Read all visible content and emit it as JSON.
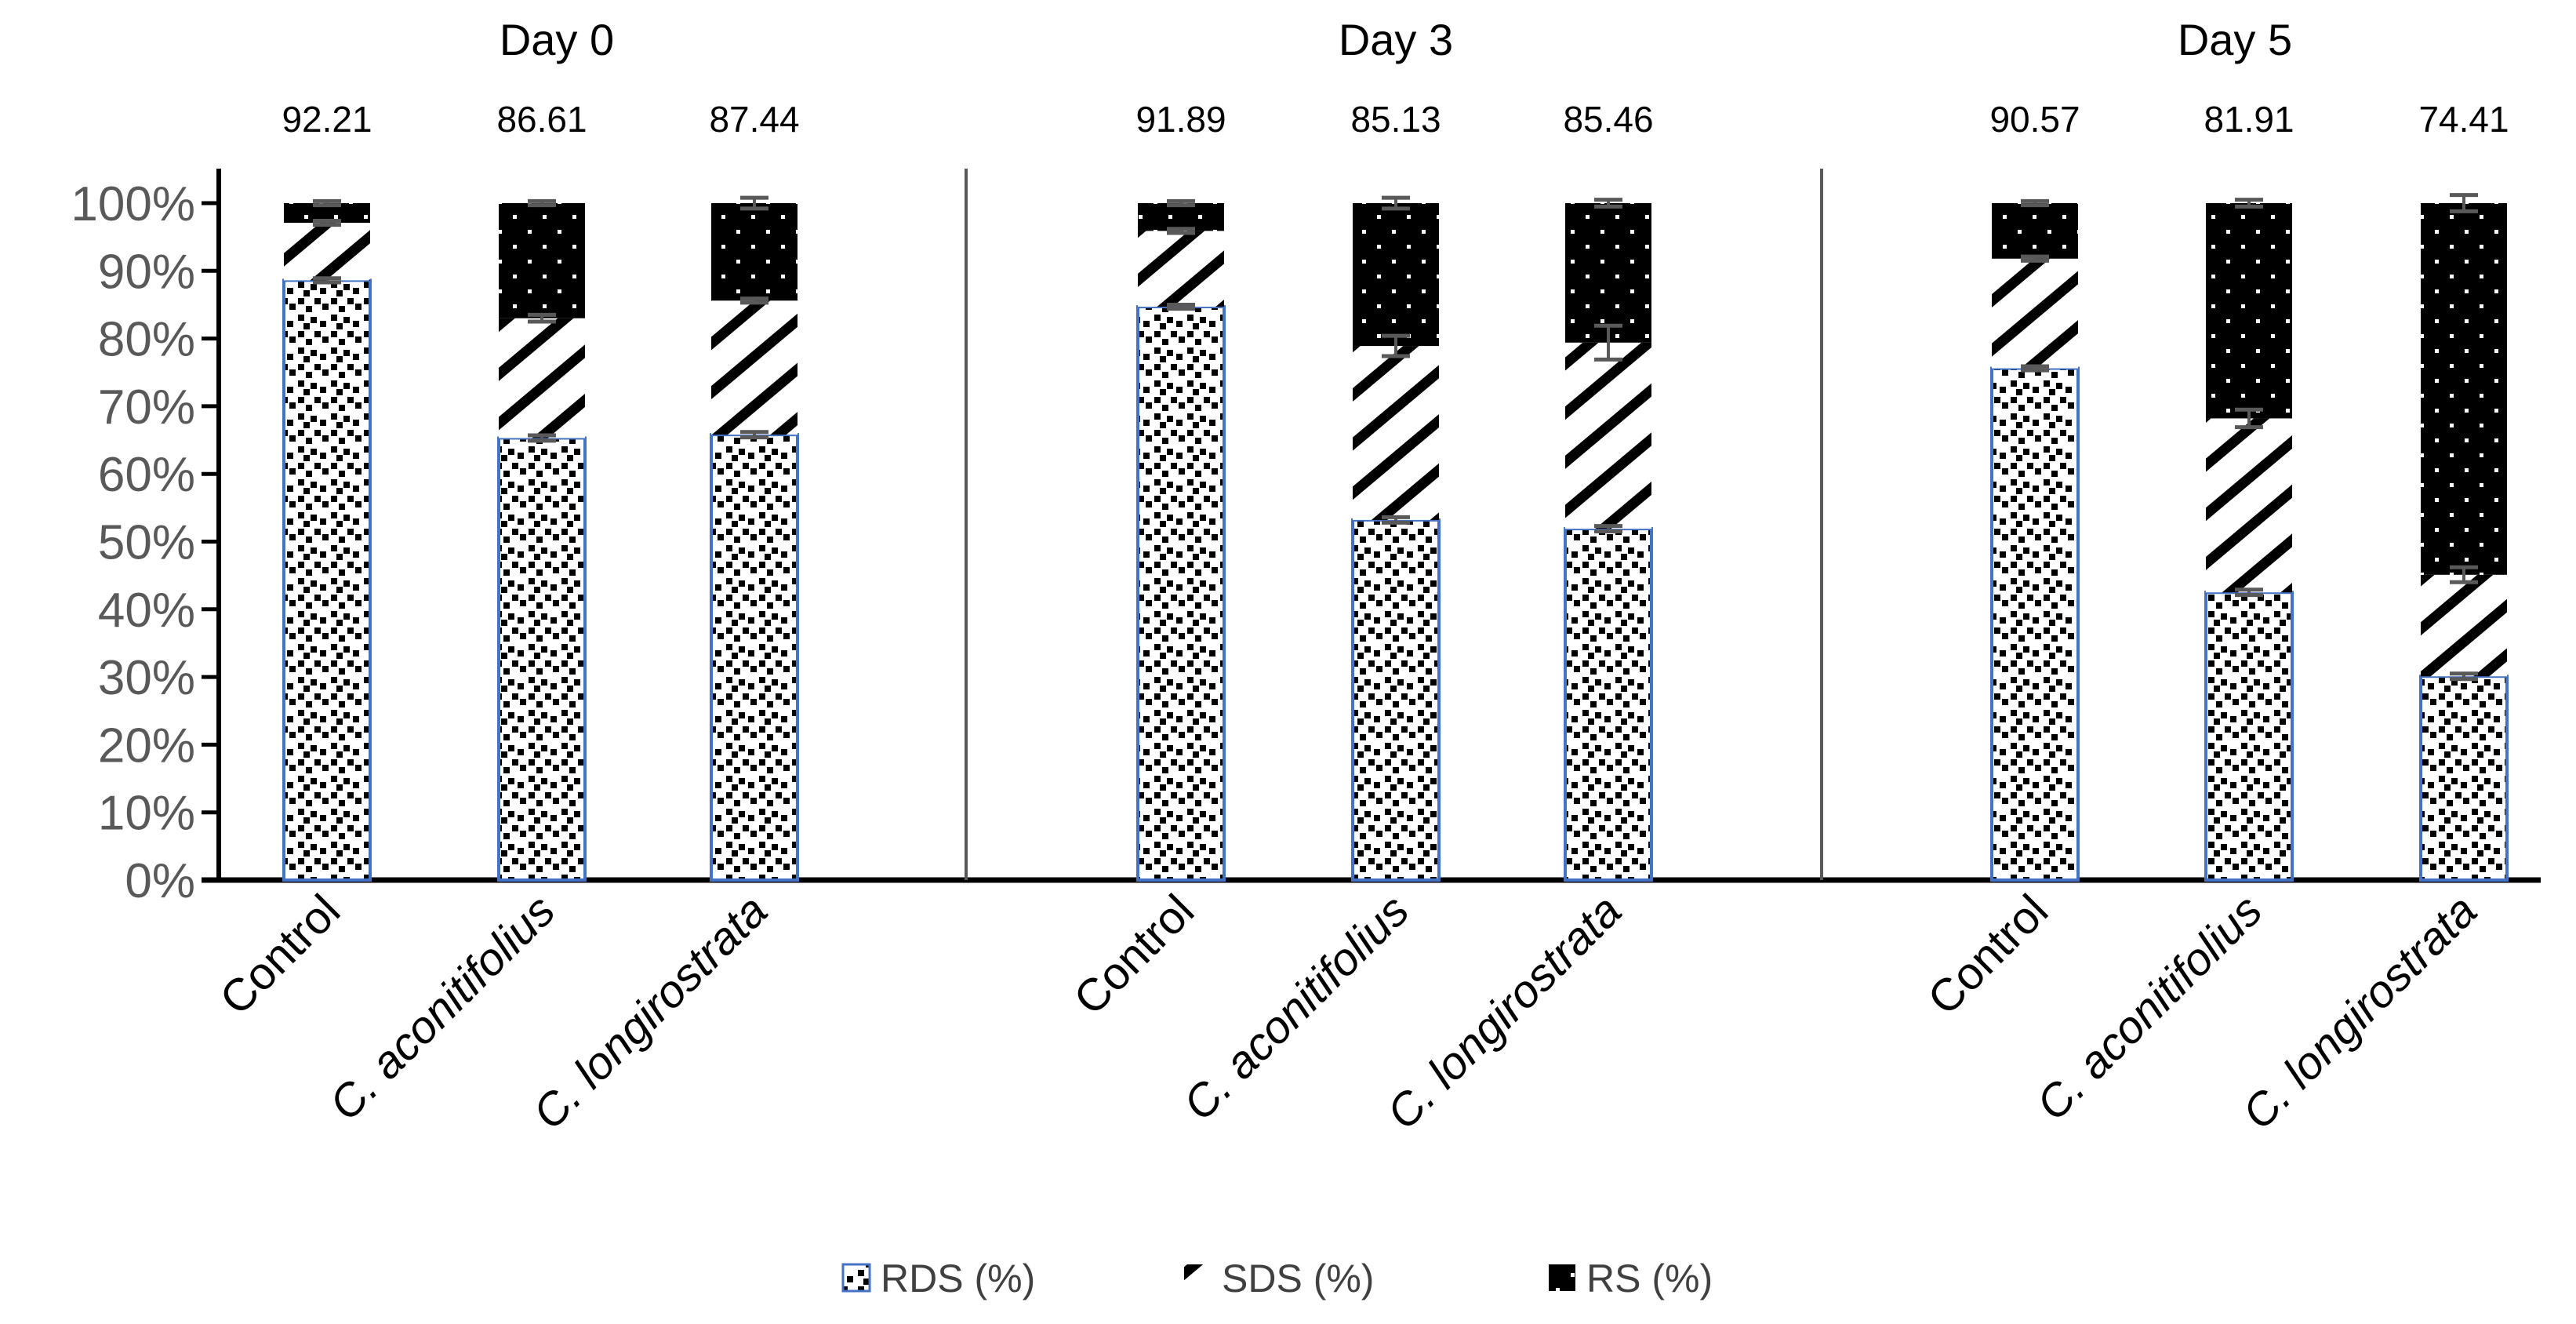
{
  "chart_data": {
    "type": "bar",
    "stacked": true,
    "title": "",
    "xlabel": "",
    "ylabel": "",
    "ylim": [
      0,
      100
    ],
    "yticks": [
      "0%",
      "10%",
      "20%",
      "30%",
      "40%",
      "50%",
      "60%",
      "70%",
      "80%",
      "90%",
      "100%"
    ],
    "legend_position": "bottom",
    "groups": [
      {
        "label": "Day 0",
        "categories": [
          {
            "name": "Control",
            "italic": false,
            "annotation": "92.21",
            "RDS": 88.6,
            "SDS": 8.5,
            "RS": 2.9,
            "err": [
              0.3,
              0.3,
              0.3
            ]
          },
          {
            "name": "C. aconitifolius",
            "italic": true,
            "annotation": "86.61",
            "RDS": 65.3,
            "SDS": 17.7,
            "RS": 17.0,
            "err": [
              0.4,
              0.5,
              0.3
            ]
          },
          {
            "name": "C. longirostrata",
            "italic": true,
            "annotation": "87.44",
            "RDS": 65.8,
            "SDS": 19.8,
            "RS": 14.4,
            "err": [
              0.4,
              0.3,
              0.8
            ]
          }
        ]
      },
      {
        "label": "Day 3",
        "categories": [
          {
            "name": "Control",
            "italic": false,
            "annotation": "91.89",
            "RDS": 84.7,
            "SDS": 11.2,
            "RS": 4.1,
            "err": [
              0.3,
              0.3,
              0.3
            ]
          },
          {
            "name": "C. aconitifolius",
            "italic": true,
            "annotation": "85.13",
            "RDS": 53.2,
            "SDS": 25.7,
            "RS": 21.1,
            "err": [
              0.4,
              1.5,
              0.8
            ]
          },
          {
            "name": "C. longirostrata",
            "italic": true,
            "annotation": "85.46",
            "RDS": 51.9,
            "SDS": 27.5,
            "RS": 20.6,
            "err": [
              0.4,
              2.5,
              0.5
            ]
          }
        ]
      },
      {
        "label": "Day 5",
        "categories": [
          {
            "name": "Control",
            "italic": false,
            "annotation": "90.57",
            "RDS": 75.6,
            "SDS": 16.2,
            "RS": 8.2,
            "err": [
              0.3,
              0.3,
              0.3
            ]
          },
          {
            "name": "C. aconitifolius",
            "italic": true,
            "annotation": "81.91",
            "RDS": 42.5,
            "SDS": 25.7,
            "RS": 31.8,
            "err": [
              0.4,
              1.3,
              0.5
            ]
          },
          {
            "name": "C. longirostrata",
            "italic": true,
            "annotation": "74.41",
            "RDS": 30.1,
            "SDS": 15.0,
            "RS": 54.9,
            "err": [
              0.4,
              1.1,
              1.2
            ]
          }
        ]
      }
    ],
    "series": [
      {
        "key": "RDS",
        "name": "RDS (%)"
      },
      {
        "key": "SDS",
        "name": "SDS (%)"
      },
      {
        "key": "RS",
        "name": "RS (%)"
      }
    ],
    "colors": {
      "rds_border": "#4472C4",
      "error_bar": "#595959",
      "axis": "#000000",
      "separator": "#595959"
    }
  }
}
